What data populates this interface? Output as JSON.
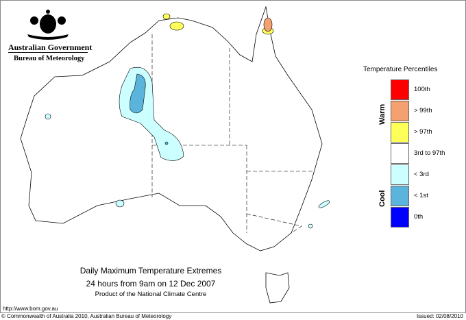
{
  "logo": {
    "line1": "Australian Government",
    "line2": "Bureau of Meteorology"
  },
  "legend": {
    "title": "Temperature Percentiles",
    "warm_label": "Warm",
    "cool_label": "Cool",
    "items": [
      {
        "label": "100th",
        "color": "#ff0000"
      },
      {
        "label": "> 99th",
        "color": "#f4a070"
      },
      {
        "label": "> 97th",
        "color": "#ffff5a"
      },
      {
        "label": "3rd to 97th",
        "color": "#ffffff"
      },
      {
        "label": "< 3rd",
        "color": "#ccffff"
      },
      {
        "label": "< 1st",
        "color": "#5ab4dc"
      },
      {
        "label": "0th",
        "color": "#0000ff"
      }
    ]
  },
  "title": "Daily Maximum Temperature Extremes",
  "subtitle": "24 hours from 9am on 12 Dec 2007",
  "product": "Product of the National Climate Centre",
  "url": "http://www.bom.gov.au",
  "copyright": "© Commonwealth of Australia 2010, Australian Bureau of Meteorology",
  "issued": "Issued: 02/08/2010"
}
